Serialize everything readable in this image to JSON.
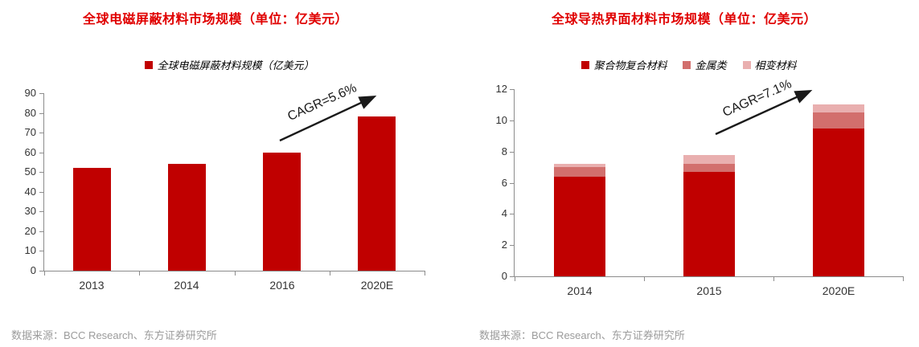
{
  "chart_data": [
    {
      "type": "bar",
      "stacked": false,
      "title": "全球电磁屏蔽材料市场规模（单位：亿美元）",
      "categories": [
        "2013",
        "2014",
        "2016",
        "2020E"
      ],
      "series": [
        {
          "name": "全球电磁屏蔽材料规模（亿美元）",
          "color": "#C00000",
          "values": [
            52,
            54,
            60,
            78
          ]
        }
      ],
      "xlabel": "",
      "ylabel": "",
      "ylim": [
        0,
        90
      ],
      "yticks": [
        0,
        10,
        20,
        30,
        40,
        50,
        60,
        70,
        80,
        90
      ],
      "grid": false,
      "legend_position": "top",
      "annotation": "CAGR=5.6%",
      "source": "数据来源：BCC Research、东方证券研究所"
    },
    {
      "type": "bar",
      "stacked": true,
      "title": "全球导热界面材料市场规模（单位：亿美元）",
      "categories": [
        "2014",
        "2015",
        "2020E"
      ],
      "series": [
        {
          "name": "聚合物复合材料",
          "color": "#C00000",
          "values": [
            6.4,
            6.7,
            9.5
          ]
        },
        {
          "name": "金属类",
          "color": "#D26F6D",
          "values": [
            0.6,
            0.5,
            1.0
          ]
        },
        {
          "name": "相变材料",
          "color": "#E9AFAF",
          "values": [
            0.2,
            0.6,
            0.5
          ]
        }
      ],
      "xlabel": "",
      "ylabel": "",
      "ylim": [
        0,
        12
      ],
      "yticks": [
        0,
        2,
        4,
        6,
        8,
        10,
        12
      ],
      "grid": false,
      "legend_position": "top",
      "annotation": "CAGR=7.1%",
      "source": "数据来源：BCC Research、东方证券研究所"
    }
  ],
  "colors": {
    "title_red": "#E00000",
    "bar_dark_red": "#C00000",
    "bar_medium_red": "#D26F6D",
    "bar_light_pink": "#E9AFAF",
    "axis_gray": "#8C8C8C",
    "tick_label": "#333333",
    "source_gray": "#9B9B9B",
    "arrow_black": "#1A1A1A"
  }
}
